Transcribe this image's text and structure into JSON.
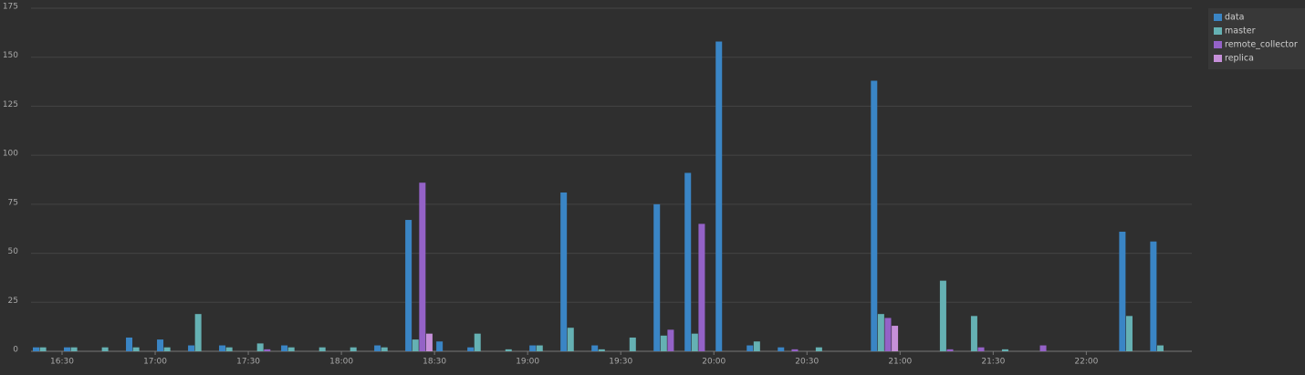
{
  "chart_data": {
    "type": "bar",
    "x": [
      "16:20",
      "16:30",
      "16:40",
      "16:50",
      "17:00",
      "17:10",
      "17:20",
      "17:30",
      "17:40",
      "17:50",
      "18:00",
      "18:10",
      "18:20",
      "18:30",
      "18:40",
      "18:50",
      "19:00",
      "19:10",
      "19:20",
      "19:30",
      "19:40",
      "19:50",
      "20:00",
      "20:10",
      "20:20",
      "20:30",
      "20:40",
      "20:50",
      "21:00",
      "21:10",
      "21:20",
      "21:30",
      "21:40",
      "21:50",
      "22:00",
      "22:10",
      "22:20"
    ],
    "series": [
      {
        "name": "data",
        "color": "#3a85c5",
        "values": [
          2,
          2,
          0,
          7,
          6,
          3,
          3,
          0,
          3,
          0,
          0,
          3,
          67,
          5,
          2,
          0,
          3,
          81,
          3,
          0,
          75,
          91,
          158,
          3,
          2,
          0,
          0,
          138,
          0,
          0,
          0,
          0,
          0,
          0,
          0,
          61,
          56
        ]
      },
      {
        "name": "master",
        "color": "#65b1b3",
        "values": [
          2,
          2,
          2,
          2,
          2,
          19,
          2,
          4,
          2,
          2,
          2,
          2,
          6,
          0,
          9,
          1,
          3,
          12,
          1,
          7,
          8,
          9,
          0,
          5,
          0,
          2,
          0,
          19,
          0,
          36,
          18,
          1,
          0,
          0,
          0,
          18,
          3
        ]
      },
      {
        "name": "remote_collector",
        "color": "#9462c7",
        "values": [
          0,
          0,
          0,
          0,
          0,
          0,
          0,
          1,
          0,
          0,
          0,
          0,
          86,
          0,
          0,
          0,
          0,
          0,
          0,
          0,
          11,
          65,
          0,
          0,
          1,
          0,
          0,
          17,
          0,
          1,
          2,
          0,
          3,
          0,
          0,
          0,
          0
        ]
      },
      {
        "name": "replica",
        "color": "#c690d9",
        "values": [
          0,
          0,
          0,
          0,
          0,
          0,
          0,
          0,
          0,
          0,
          0,
          0,
          9,
          0,
          0,
          0,
          0,
          0,
          0,
          0,
          0,
          0,
          0,
          0,
          0,
          0,
          0,
          13,
          0,
          0,
          0,
          0,
          0,
          0,
          0,
          0,
          0
        ]
      }
    ],
    "xlim": [
      "16:20",
      "22:34"
    ],
    "xticks": [
      "16:30",
      "17:00",
      "17:30",
      "18:00",
      "18:30",
      "19:00",
      "19:30",
      "20:00",
      "20:30",
      "21:00",
      "21:30",
      "22:00"
    ],
    "ylim": [
      0,
      175
    ],
    "yticks": [
      0,
      25,
      50,
      75,
      100,
      125,
      150,
      175
    ],
    "grid": true,
    "legend": "top-right"
  }
}
